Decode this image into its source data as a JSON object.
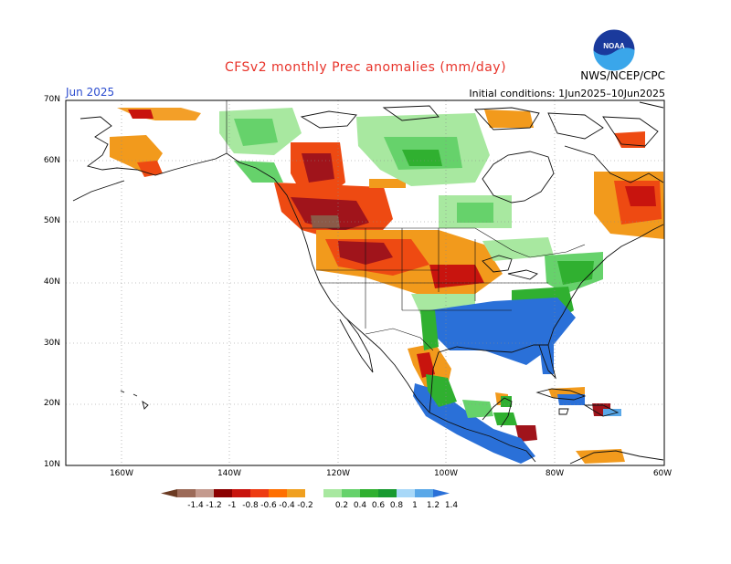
{
  "title": "CFSv2 monthly Prec anomalies (mm/day)",
  "agency": "NWS/NCEP/CPC",
  "month_label": "Jun 2025",
  "initial_conditions": "Initial conditions: 1Jun2025–10Jun2025",
  "logo": {
    "text": "NOAA",
    "icon": "noaa-logo-icon"
  },
  "lat_labels": [
    "70N",
    "60N",
    "50N",
    "40N",
    "30N",
    "20N",
    "10N"
  ],
  "lon_labels": [
    "160W",
    "140W",
    "120W",
    "100W",
    "80W",
    "60W"
  ],
  "colorbar": {
    "labels": [
      "-1.4",
      "-1.2",
      "-1",
      "-0.8",
      "-0.6",
      "-0.4",
      "-0.2",
      "0.2",
      "0.4",
      "0.6",
      "0.8",
      "1",
      "1.2",
      "1.4"
    ],
    "colors": [
      "#6b3a22",
      "#9c6a58",
      "#c49a8e",
      "#8b0000",
      "#c8140e",
      "#ee3b12",
      "#ff6f00",
      "#f0a020",
      "#ffffff",
      "#a8e8a0",
      "#66d26b",
      "#30b030",
      "#189a30",
      "#a8d8f8",
      "#5aa8e8",
      "#2a70d8"
    ]
  },
  "colors": {
    "title": "#e8332a",
    "month": "#2b4ccf",
    "dry_strong": "#a0141b",
    "dry": "#ee4a12",
    "dry_weak": "#f29a1c",
    "wet_weak": "#7ad06e",
    "wet": "#2aa84a",
    "wet_strong": "#2a70d8"
  }
}
